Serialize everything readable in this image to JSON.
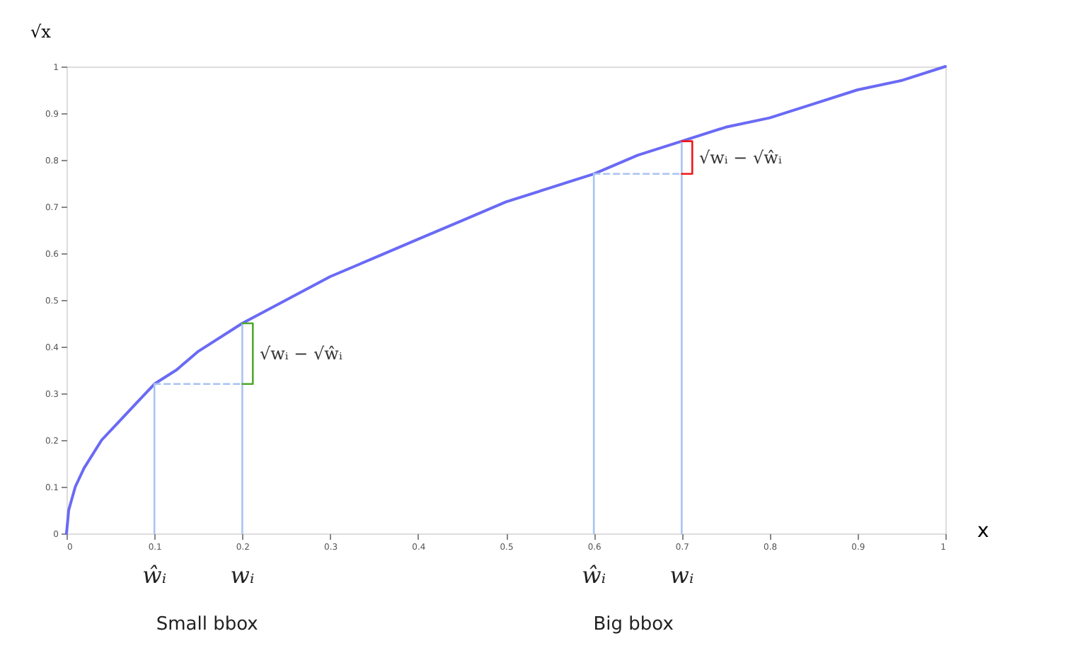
{
  "chart_data": {
    "type": "line",
    "xlabel": "x",
    "ylabel": "√x",
    "xlim": [
      0,
      1
    ],
    "ylim": [
      0,
      1
    ],
    "xticks": [
      0,
      0.1,
      0.2,
      0.3,
      0.4,
      0.5,
      0.6,
      0.7,
      0.8,
      0.9,
      1
    ],
    "yticks": [
      0,
      0.1,
      0.2,
      0.3,
      0.4,
      0.5,
      0.6,
      0.7,
      0.8,
      0.9,
      1
    ],
    "grid": false,
    "marker": "none",
    "line_style": "solid",
    "series": [
      {
        "color": "#6a6af5",
        "x": [
          0,
          0.0025,
          0.01,
          0.02,
          0.04,
          0.06,
          0.08,
          0.1,
          0.125,
          0.15,
          0.2,
          0.25,
          0.3,
          0.35,
          0.4,
          0.45,
          0.5,
          0.55,
          0.6,
          0.65,
          0.7,
          0.75,
          0.8,
          0.85,
          0.9,
          0.95,
          1
        ],
        "values": [
          0,
          0.05,
          0.1,
          0.14,
          0.2,
          0.24,
          0.28,
          0.32,
          0.35,
          0.39,
          0.45,
          0.5,
          0.55,
          0.59,
          0.63,
          0.67,
          0.71,
          0.74,
          0.77,
          0.81,
          0.84,
          0.87,
          0.89,
          0.92,
          0.95,
          0.97,
          1
        ]
      },
      {
        "type": "line",
        "color": "#a9c3f2",
        "x": [
          0.1,
          0.1
        ],
        "values": [
          0,
          0.32
        ]
      },
      {
        "type": "line",
        "color": "#a9c3f2",
        "x": [
          0.2,
          0.2
        ],
        "values": [
          0,
          0.45
        ]
      },
      {
        "type": "line",
        "color": "#a9c3f2",
        "x": [
          0.6,
          0.6
        ],
        "values": [
          0,
          0.77
        ]
      },
      {
        "type": "line",
        "color": "#a9c3f2",
        "x": [
          0.7,
          0.7
        ],
        "values": [
          0,
          0.84
        ]
      },
      {
        "type": "line",
        "color": "#a9c3f2",
        "line_style": "dashed",
        "x": [
          0.1,
          0.2
        ],
        "values": [
          0.32,
          0.32
        ]
      },
      {
        "type": "line",
        "color": "#a9c3f2",
        "line_style": "dashed",
        "x": [
          0.6,
          0.7
        ],
        "values": [
          0.77,
          0.77
        ]
      },
      {
        "type": "line",
        "color": "#4fa82e",
        "x": [
          0.2,
          0.212,
          0.212,
          0.2
        ],
        "values": [
          0.32,
          0.32,
          0.45,
          0.45
        ]
      },
      {
        "type": "line",
        "color": "#f01818",
        "x": [
          0.7,
          0.712,
          0.712,
          0.7
        ],
        "values": [
          0.77,
          0.77,
          0.84,
          0.84
        ]
      }
    ],
    "annotations": [
      {
        "text": "√wᵢ − √ŵᵢ",
        "x": 0.215,
        "y": 0.385
      },
      {
        "text": "√wᵢ − √ŵᵢ",
        "x": 0.715,
        "y": 0.805
      },
      {
        "text": "ŵᵢ",
        "x": 0.1,
        "y": 0
      },
      {
        "text": "wᵢ",
        "x": 0.2,
        "y": 0
      },
      {
        "text": "ŵᵢ",
        "x": 0.6,
        "y": 0
      },
      {
        "text": "wᵢ",
        "x": 0.7,
        "y": 0
      },
      "Small bbox",
      "Big bbox"
    ]
  }
}
